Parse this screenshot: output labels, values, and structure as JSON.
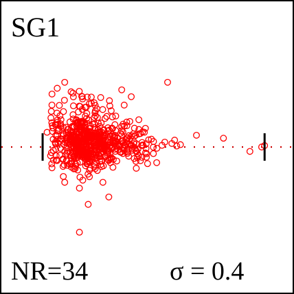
{
  "chart_data": {
    "type": "scatter",
    "title": "SG1",
    "annotations": {
      "nr": "NR=34",
      "sigma": "σ = 0.4"
    },
    "xlim": [
      0,
      1
    ],
    "ylim": [
      -1,
      1
    ],
    "grid": false,
    "legend": "none",
    "reference_line": {
      "y": 0,
      "style": "dotted",
      "color": "#cc0000"
    },
    "range_markers": {
      "x": [
        0.145,
        0.9
      ]
    },
    "marker": {
      "shape": "open-circle",
      "color": "#ff0000"
    },
    "points": {
      "count": 640,
      "seed": 34,
      "core": {
        "x_center": 0.24,
        "x_sd": 0.12,
        "x_min": 0.17,
        "x_max": 0.71,
        "y_sd": 0.09
      },
      "outliers": [
        [
          0.27,
          -0.58
        ],
        [
          0.3,
          -0.39
        ],
        [
          0.37,
          -0.34
        ],
        [
          0.27,
          -0.28
        ],
        [
          0.22,
          -0.24
        ],
        [
          0.35,
          -0.24
        ],
        [
          0.18,
          0.13
        ],
        [
          0.22,
          0.44
        ],
        [
          0.57,
          0.44
        ],
        [
          0.85,
          -0.03
        ],
        [
          0.89,
          0.0
        ],
        [
          0.9,
          0.01
        ],
        [
          0.16,
          0.1
        ],
        [
          0.76,
          0.06
        ]
      ]
    }
  }
}
